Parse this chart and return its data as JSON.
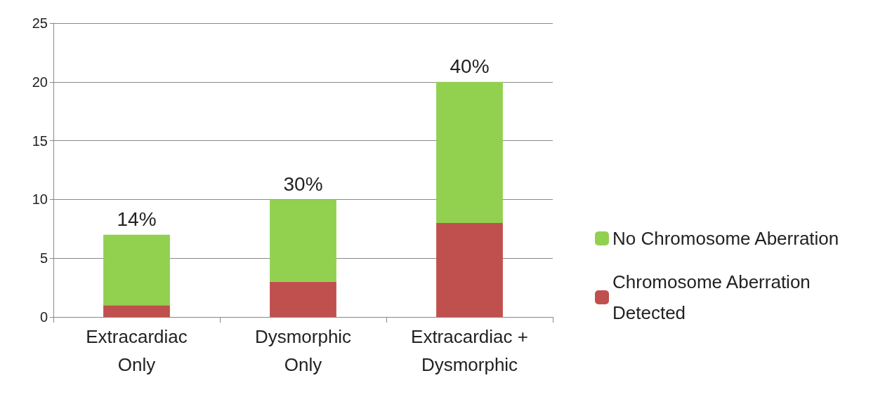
{
  "chart_data": {
    "type": "bar",
    "stacked": true,
    "categories": [
      "Extracardiac\nOnly",
      "Dysmorphic\nOnly",
      "Extracardiac +\nDysmorphic"
    ],
    "series": [
      {
        "name": "Chromosome Aberration Detected",
        "color": "#c0504d",
        "values": [
          1,
          3,
          8
        ]
      },
      {
        "name": "No Chromosome Aberration",
        "color": "#92d050",
        "values": [
          6,
          7,
          12
        ]
      }
    ],
    "ylim": [
      0,
      25
    ],
    "yticks": [
      0,
      5,
      10,
      15,
      20,
      25
    ],
    "grid": "y",
    "legend": "right",
    "annotations": [
      {
        "text": "14%",
        "x": "Extracardiac\nOnly",
        "y": 7
      },
      {
        "text": "30%",
        "x": "Dysmorphic\nOnly",
        "y": 10
      },
      {
        "text": "40%",
        "x": "Extracardiac +\nDysmorphic",
        "y": 20
      }
    ]
  }
}
